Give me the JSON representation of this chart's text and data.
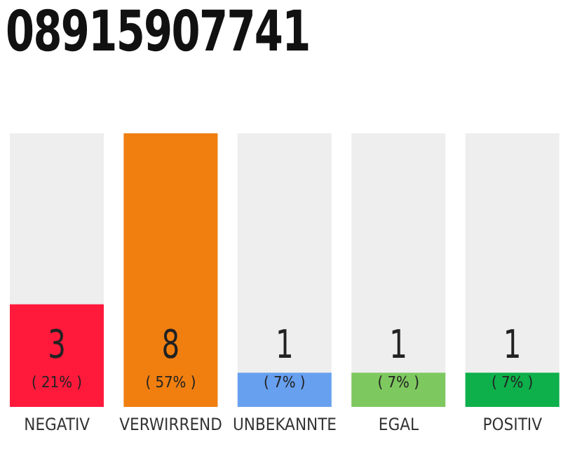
{
  "chart_data": {
    "type": "bar",
    "title": "08915907741",
    "categories": [
      "NEGATIV",
      "VERWIRREND",
      "UNBEKANNTE",
      "EGAL",
      "POSITIV"
    ],
    "values": [
      3,
      8,
      1,
      1,
      1
    ],
    "colors": [
      "#ff1a3c",
      "#f07f10",
      "#68a0f0",
      "#7ec860",
      "#0db04a"
    ],
    "value_labels": [
      "3\n( 21% )",
      "8\n( 57% )",
      "1\n( 7% )",
      "1\n( 7% )",
      "1\n( 7% )"
    ],
    "data_labels": false
  }
}
